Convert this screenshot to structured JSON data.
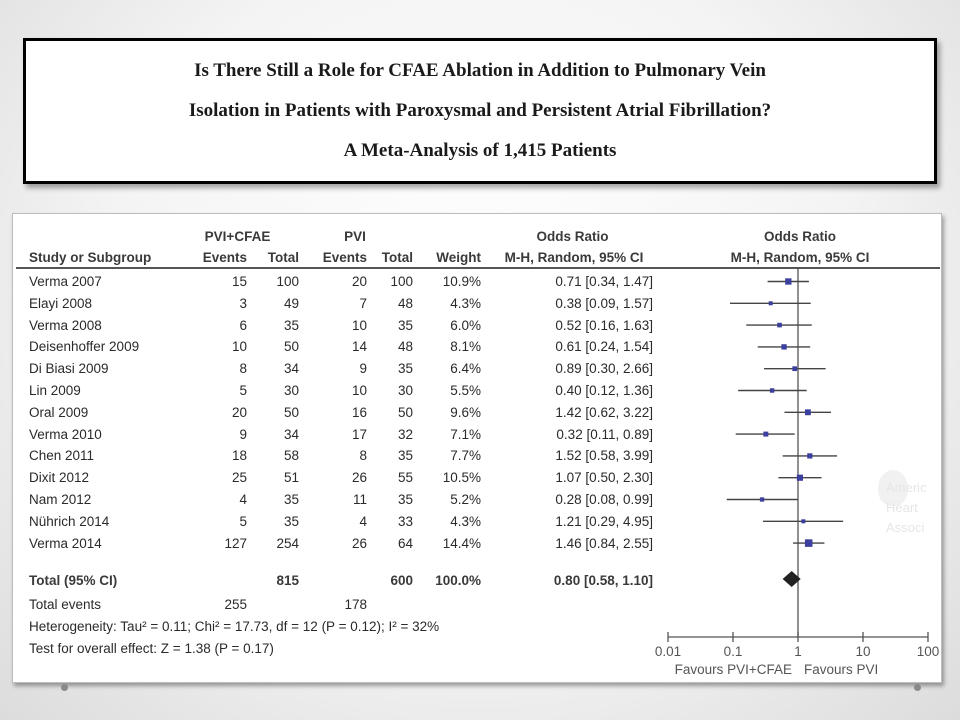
{
  "title": {
    "lines": [
      "Is There Still a Role for CFAE Ablation in Addition to Pulmonary Vein",
      "Isolation in Patients with Paroxysmal and Persistent Atrial Fibrillation?",
      "A Meta-Analysis of 1,415 Patients"
    ]
  },
  "table": {
    "group_headers": {
      "exp": "PVI+CFAE",
      "ctrl": "PVI",
      "or_text": "Odds Ratio",
      "or_plot": "Odds Ratio"
    },
    "columns": {
      "study": "Study or Subgroup",
      "exp_events": "Events",
      "exp_total": "Total",
      "ctrl_events": "Events",
      "ctrl_total": "Total",
      "weight": "Weight",
      "or_text": "M-H, Random, 95% CI",
      "or_plot": "M-H, Random, 95% CI"
    },
    "rows": [
      {
        "study": "Verma 2007",
        "exp_events": "15",
        "exp_total": "100",
        "ctrl_events": "20",
        "ctrl_total": "100",
        "weight": "10.9%",
        "ci_text": "0.71 [0.34, 1.47]"
      },
      {
        "study": "Elayi 2008",
        "exp_events": "3",
        "exp_total": "49",
        "ctrl_events": "7",
        "ctrl_total": "48",
        "weight": "4.3%",
        "ci_text": "0.38 [0.09, 1.57]"
      },
      {
        "study": "Verma 2008",
        "exp_events": "6",
        "exp_total": "35",
        "ctrl_events": "10",
        "ctrl_total": "35",
        "weight": "6.0%",
        "ci_text": "0.52 [0.16, 1.63]"
      },
      {
        "study": "Deisenhoffer 2009",
        "exp_events": "10",
        "exp_total": "50",
        "ctrl_events": "14",
        "ctrl_total": "48",
        "weight": "8.1%",
        "ci_text": "0.61 [0.24, 1.54]"
      },
      {
        "study": "Di Biasi 2009",
        "exp_events": "8",
        "exp_total": "34",
        "ctrl_events": "9",
        "ctrl_total": "35",
        "weight": "6.4%",
        "ci_text": "0.89 [0.30, 2.66]"
      },
      {
        "study": "Lin 2009",
        "exp_events": "5",
        "exp_total": "30",
        "ctrl_events": "10",
        "ctrl_total": "30",
        "weight": "5.5%",
        "ci_text": "0.40 [0.12, 1.36]"
      },
      {
        "study": "Oral 2009",
        "exp_events": "20",
        "exp_total": "50",
        "ctrl_events": "16",
        "ctrl_total": "50",
        "weight": "9.6%",
        "ci_text": "1.42 [0.62, 3.22]"
      },
      {
        "study": "Verma 2010",
        "exp_events": "9",
        "exp_total": "34",
        "ctrl_events": "17",
        "ctrl_total": "32",
        "weight": "7.1%",
        "ci_text": "0.32 [0.11, 0.89]"
      },
      {
        "study": "Chen 2011",
        "exp_events": "18",
        "exp_total": "58",
        "ctrl_events": "8",
        "ctrl_total": "35",
        "weight": "7.7%",
        "ci_text": "1.52 [0.58, 3.99]"
      },
      {
        "study": "Dixit 2012",
        "exp_events": "25",
        "exp_total": "51",
        "ctrl_events": "26",
        "ctrl_total": "55",
        "weight": "10.5%",
        "ci_text": "1.07 [0.50, 2.30]"
      },
      {
        "study": "Nam 2012",
        "exp_events": "4",
        "exp_total": "35",
        "ctrl_events": "11",
        "ctrl_total": "35",
        "weight": "5.2%",
        "ci_text": "0.28 [0.08, 0.99]"
      },
      {
        "study": "Nührich 2014",
        "exp_events": "5",
        "exp_total": "35",
        "ctrl_events": "4",
        "ctrl_total": "33",
        "weight": "4.3%",
        "ci_text": "1.21 [0.29, 4.95]"
      },
      {
        "study": "Verma 2014",
        "exp_events": "127",
        "exp_total": "254",
        "ctrl_events": "26",
        "ctrl_total": "64",
        "weight": "14.4%",
        "ci_text": "1.46 [0.84, 2.55]"
      }
    ],
    "total": {
      "label": "Total (95% CI)",
      "exp_total": "815",
      "ctrl_total": "600",
      "weight": "100.0%",
      "ci_text": "0.80 [0.58, 1.10]"
    },
    "total_events": {
      "label": "Total events",
      "exp": "255",
      "ctrl": "178"
    },
    "heterogeneity": "Heterogeneity: Tau² = 0.11; Chi² = 17.73, df = 12 (P = 0.12); I² = 32%",
    "overall_effect": "Test for overall effect: Z = 1.38 (P = 0.17)"
  },
  "watermark": {
    "logo_text": [
      "Americ",
      "Heart",
      "Associ"
    ]
  },
  "colors": {
    "point": "#3b3f9e",
    "line": "#444444",
    "diamond": "#222222"
  },
  "chart_data": {
    "type": "forest",
    "title": "Odds Ratio M-H, Random, 95% CI",
    "x_scale": "log",
    "xlim": [
      0.01,
      100
    ],
    "x_ticks": [
      0.01,
      0.1,
      1,
      10,
      100
    ],
    "x_tick_labels": [
      "0.01",
      "0.1",
      "1",
      "10",
      "100"
    ],
    "xlabel_left": "Favours PVI+CFAE",
    "xlabel_right": "Favours PVI",
    "reference_line": 1,
    "studies": [
      {
        "name": "Verma 2007",
        "or": 0.71,
        "lo": 0.34,
        "hi": 1.47,
        "weight": 10.9
      },
      {
        "name": "Elayi 2008",
        "or": 0.38,
        "lo": 0.09,
        "hi": 1.57,
        "weight": 4.3
      },
      {
        "name": "Verma 2008",
        "or": 0.52,
        "lo": 0.16,
        "hi": 1.63,
        "weight": 6.0
      },
      {
        "name": "Deisenhoffer 2009",
        "or": 0.61,
        "lo": 0.24,
        "hi": 1.54,
        "weight": 8.1
      },
      {
        "name": "Di Biasi 2009",
        "or": 0.89,
        "lo": 0.3,
        "hi": 2.66,
        "weight": 6.4
      },
      {
        "name": "Lin 2009",
        "or": 0.4,
        "lo": 0.12,
        "hi": 1.36,
        "weight": 5.5
      },
      {
        "name": "Oral 2009",
        "or": 1.42,
        "lo": 0.62,
        "hi": 3.22,
        "weight": 9.6
      },
      {
        "name": "Verma 2010",
        "or": 0.32,
        "lo": 0.11,
        "hi": 0.89,
        "weight": 7.1
      },
      {
        "name": "Chen 2011",
        "or": 1.52,
        "lo": 0.58,
        "hi": 3.99,
        "weight": 7.7
      },
      {
        "name": "Dixit 2012",
        "or": 1.07,
        "lo": 0.5,
        "hi": 2.3,
        "weight": 10.5
      },
      {
        "name": "Nam 2012",
        "or": 0.28,
        "lo": 0.08,
        "hi": 0.99,
        "weight": 5.2
      },
      {
        "name": "Nührich 2014",
        "or": 1.21,
        "lo": 0.29,
        "hi": 4.95,
        "weight": 4.3
      },
      {
        "name": "Verma 2014",
        "or": 1.46,
        "lo": 0.84,
        "hi": 2.55,
        "weight": 14.4
      }
    ],
    "pooled": {
      "or": 0.8,
      "lo": 0.58,
      "hi": 1.1
    }
  }
}
